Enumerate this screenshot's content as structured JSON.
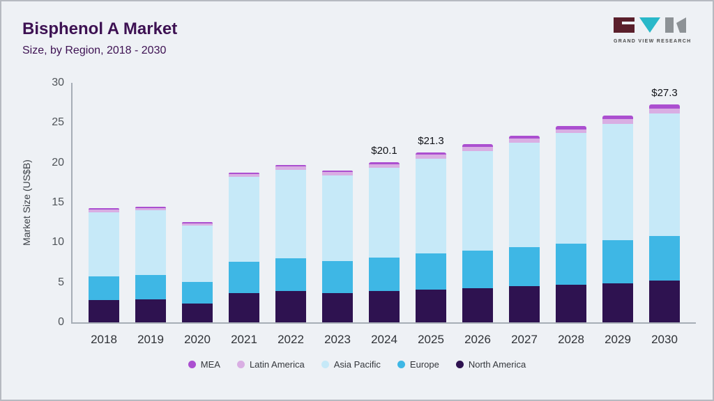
{
  "page": {
    "title": "Bisphenol A Market",
    "subtitle": "Size, by Region, 2018 - 2030"
  },
  "logo": {
    "text": "GRAND VIEW RESEARCH",
    "colors": {
      "left": "#5a1f2b",
      "middle": "#29b8c9",
      "right": "#8d9296"
    }
  },
  "chart_data": {
    "type": "bar",
    "stacked": true,
    "title": "Bisphenol A Market Size, by Region, 2018 - 2030",
    "xlabel": "",
    "ylabel": "Market Size (US$B)",
    "ylim": [
      0,
      30
    ],
    "yticks": [
      0,
      5,
      10,
      15,
      20,
      25,
      30
    ],
    "grid": false,
    "legend_position": "bottom",
    "categories": [
      "2018",
      "2019",
      "2020",
      "2021",
      "2022",
      "2023",
      "2024",
      "2025",
      "2026",
      "2027",
      "2028",
      "2029",
      "2030"
    ],
    "series": [
      {
        "key": "north-america",
        "name": "North America",
        "color": "#2e1250",
        "values": [
          2.8,
          2.9,
          2.4,
          3.7,
          3.9,
          3.7,
          3.9,
          4.1,
          4.3,
          4.5,
          4.7,
          4.9,
          5.2
        ]
      },
      {
        "key": "europe",
        "name": "Europe",
        "color": "#3eb7e5",
        "values": [
          3.0,
          3.0,
          2.7,
          3.9,
          4.1,
          4.0,
          4.2,
          4.5,
          4.7,
          4.9,
          5.2,
          5.4,
          5.6
        ]
      },
      {
        "key": "asia-pacific",
        "name": "Asia Pacific",
        "color": "#c6e9f8",
        "values": [
          8.0,
          8.1,
          7.0,
          10.6,
          11.1,
          10.7,
          11.3,
          11.9,
          12.5,
          13.1,
          13.8,
          14.6,
          15.4
        ]
      },
      {
        "key": "latin-america",
        "name": "Latin America",
        "color": "#d9aee3",
        "values": [
          0.3,
          0.3,
          0.3,
          0.4,
          0.4,
          0.4,
          0.4,
          0.5,
          0.5,
          0.5,
          0.5,
          0.6,
          0.6
        ]
      },
      {
        "key": "mea",
        "name": "MEA",
        "color": "#ab4fd0",
        "values": [
          0.2,
          0.2,
          0.2,
          0.2,
          0.2,
          0.2,
          0.3,
          0.3,
          0.3,
          0.4,
          0.4,
          0.4,
          0.5
        ]
      }
    ],
    "totals": [
      14.3,
      14.5,
      12.6,
      18.8,
      19.7,
      19.0,
      20.1,
      21.3,
      22.3,
      23.4,
      24.6,
      25.9,
      27.3
    ],
    "value_labels": {
      "2024": "$20.1",
      "2025": "$21.3",
      "2030": "$27.3"
    }
  },
  "legend": {
    "items": [
      {
        "label": "MEA",
        "color": "#ab4fd0"
      },
      {
        "label": "Latin America",
        "color": "#d9aee3"
      },
      {
        "label": "Asia Pacific",
        "color": "#c6e9f8"
      },
      {
        "label": "Europe",
        "color": "#3eb7e5"
      },
      {
        "label": "North America",
        "color": "#2e1250"
      }
    ]
  }
}
